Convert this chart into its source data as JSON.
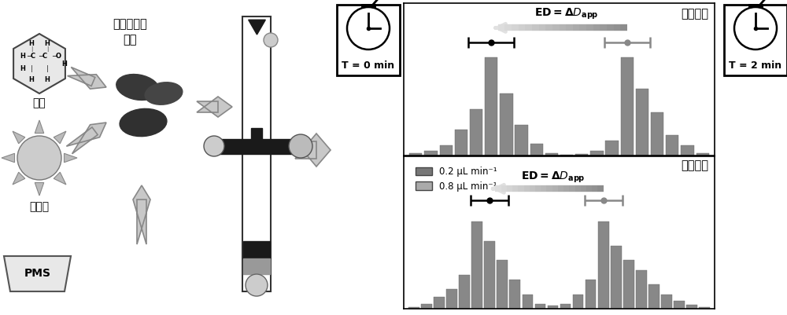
{
  "bg_color": "#ffffff",
  "bar_color_hist": "#888888",
  "top_hist_bars": [
    0.3,
    0.5,
    1.0,
    2.5,
    4.5,
    9.5,
    6.0,
    3.0,
    1.2,
    0.3,
    0.1,
    0.2,
    0.5,
    1.5,
    9.5,
    6.5,
    4.2,
    2.0,
    1.0,
    0.3
  ],
  "bot_hist_bars": [
    0.2,
    0.5,
    1.2,
    2.0,
    3.5,
    9.0,
    7.0,
    5.0,
    3.0,
    1.5,
    0.5,
    0.3,
    0.5,
    1.5,
    3.0,
    9.0,
    6.5,
    5.0,
    4.0,
    2.5,
    1.5,
    0.8,
    0.4,
    0.2
  ],
  "title_top": "健康对照",
  "title_bot": "氧化损伤",
  "label_T0": "T = 0 min",
  "label_T2": "T = 2 min",
  "legend1": "0.2 μL min⁻¹",
  "legend2": "0.8 μL min⁻¹",
  "rbc_label": "红细胞氧化\n损伤",
  "ethanol_label": "乙醇",
  "ros_label": "活性氧",
  "pms_label": "PMS"
}
